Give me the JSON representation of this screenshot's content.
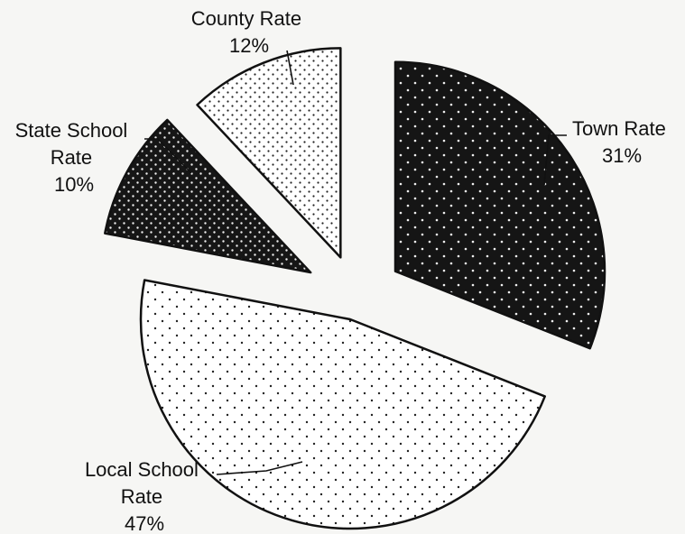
{
  "chart_data": {
    "type": "pie",
    "title": "",
    "slices": [
      {
        "name": "Town Rate",
        "value": 31,
        "percent_label": "31%",
        "name_lines": [
          "Town Rate"
        ],
        "color": "#151515",
        "dot": "#f0f0f0"
      },
      {
        "name": "Local School Rate",
        "value": 47,
        "percent_label": "47%",
        "name_lines": [
          "Local School",
          "Rate"
        ],
        "color": "#ffffff",
        "dot": "#222222"
      },
      {
        "name": "State School Rate",
        "value": 10,
        "percent_label": "10%",
        "name_lines": [
          "State School",
          "Rate"
        ],
        "color": "#161616",
        "dot": "#eeeeee"
      },
      {
        "name": "County Rate",
        "value": 12,
        "percent_label": "12%",
        "name_lines": [
          "County Rate"
        ],
        "color": "#ffffff",
        "dot": "#222222"
      }
    ],
    "legend": "none",
    "exploded": true
  }
}
